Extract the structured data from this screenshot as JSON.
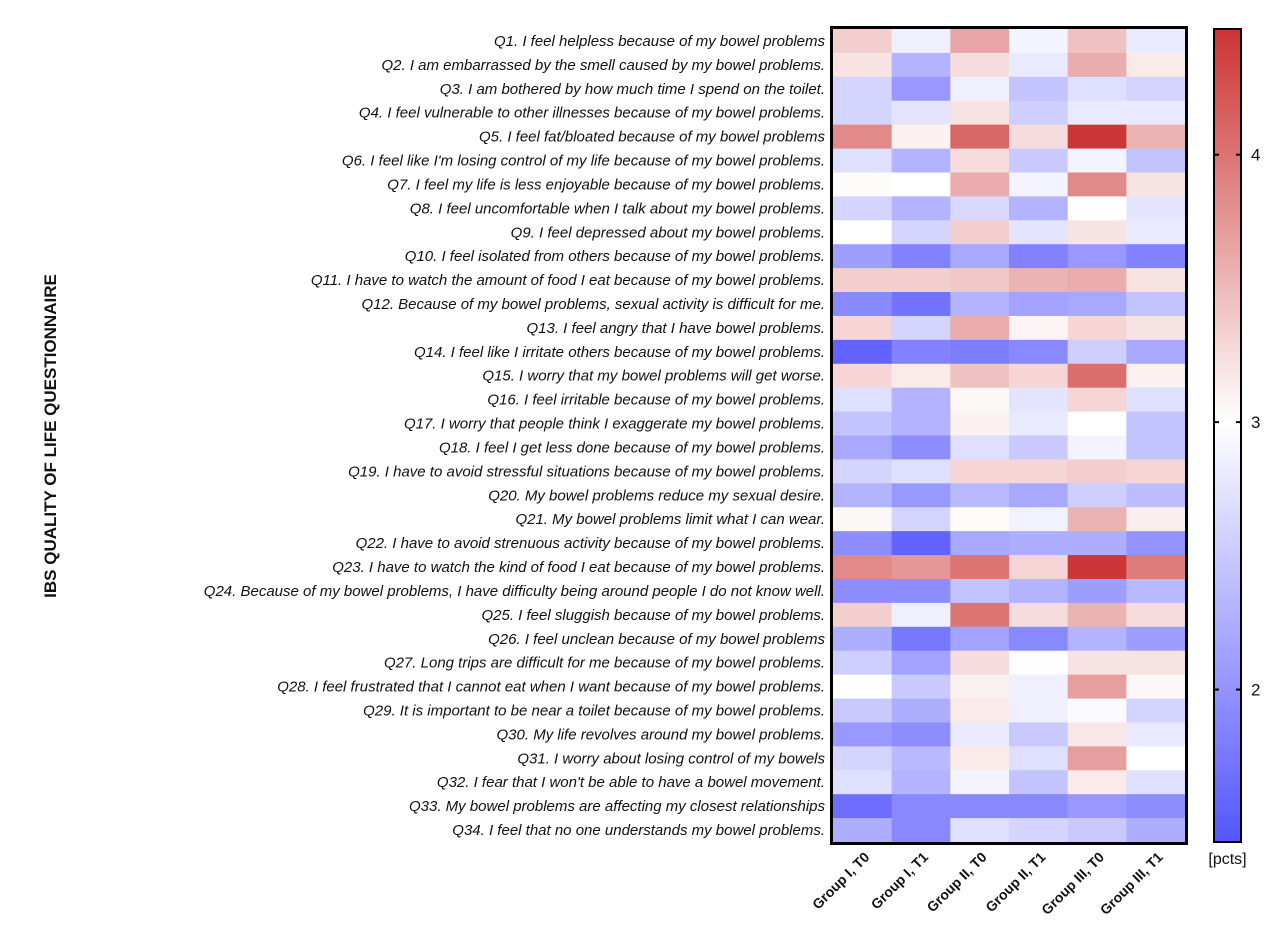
{
  "chart_data": {
    "type": "heatmap",
    "title": "",
    "ylabel": "IBS QUALITY OF LIFE QUESTIONNAIRE",
    "xlabel": "",
    "columns": [
      "Group I, T0",
      "Group I, T1",
      "Group II, T0",
      "Group II, T1",
      "Group III, T0",
      "Group III, T1"
    ],
    "rows": [
      "Q1. I feel helpless because of my bowel problems",
      "Q2. I am embarrassed by the smell caused by my bowel problems.",
      "Q3. I am bothered by how much time I spend on the toilet.",
      "Q4. I feel vulnerable to other illnesses because of my bowel problems.",
      "Q5. I feel fat/bloated because of my bowel problems",
      "Q6. I feel like I'm losing control of my life because of my bowel problems.",
      "Q7. I feel my life is less enjoyable because of my bowel problems.",
      "Q8. I feel uncomfortable when I talk about my bowel problems.",
      "Q9. I feel depressed about my bowel problems.",
      "Q10. I feel isolated from others because of my bowel problems.",
      "Q11. I have to watch the amount of food I eat because of my bowel problems.",
      "Q12. Because of my bowel problems, sexual activity is difficult for me.",
      "Q13. I feel angry that I have bowel problems.",
      "Q14. I feel like I irritate others because of my bowel problems.",
      "Q15. I worry that my bowel problems will get worse.",
      "Q16. I feel irritable because of my bowel problems.",
      "Q17. I worry that people think I exaggerate my bowel problems.",
      "Q18. I feel I get less done because of my bowel problems.",
      "Q19. I have to avoid stressful situations because of my bowel problems.",
      "Q20. My bowel problems reduce my sexual desire.",
      "Q21. My bowel problems limit what I can wear.",
      "Q22. I have to avoid strenuous activity because of my bowel problems.",
      "Q23. I have to watch the kind of food I eat because of my bowel problems.",
      "Q24. Because of my bowel problems, I have difficulty being around people I do not know well.",
      "Q25. I feel sluggish because of my bowel problems.",
      "Q26. I feel unclean because of my bowel problems",
      "Q27. Long trips are difficult for me because of my bowel problems.",
      "Q28. I feel frustrated that I cannot eat when I want because of my bowel problems.",
      "Q29. It is important to be near a toilet because of my bowel problems.",
      "Q30. My life revolves around my bowel problems.",
      "Q31. I worry about losing control of my bowels",
      "Q32. I fear that I won't be able to have a bowel movement.",
      "Q33. My bowel problems are affecting my closest relationships",
      "Q34. I feel that no one understands my bowel problems."
    ],
    "values": [
      [
        3.35,
        2.85,
        3.65,
        2.9,
        3.45,
        2.8
      ],
      [
        3.2,
        2.3,
        3.25,
        2.8,
        3.6,
        3.15
      ],
      [
        2.6,
        2.05,
        2.85,
        2.45,
        2.7,
        2.6
      ],
      [
        2.6,
        2.75,
        3.2,
        2.55,
        2.8,
        2.8
      ],
      [
        3.85,
        3.1,
        4.1,
        3.25,
        4.45,
        3.55
      ],
      [
        2.7,
        2.3,
        3.25,
        2.5,
        2.9,
        2.45
      ],
      [
        3.03,
        3.0,
        3.6,
        2.9,
        3.85,
        3.2
      ],
      [
        2.6,
        2.3,
        2.65,
        2.3,
        3.0,
        2.75
      ],
      [
        3.0,
        2.6,
        3.35,
        2.75,
        3.2,
        2.8
      ],
      [
        2.1,
        1.85,
        2.2,
        1.85,
        2.05,
        1.85
      ],
      [
        3.35,
        3.35,
        3.4,
        3.55,
        3.6,
        3.2
      ],
      [
        1.9,
        1.7,
        2.3,
        2.15,
        2.2,
        2.45
      ],
      [
        3.3,
        2.6,
        3.6,
        3.08,
        3.3,
        3.2
      ],
      [
        1.55,
        1.85,
        1.8,
        1.9,
        2.55,
        2.2
      ],
      [
        3.3,
        3.15,
        3.45,
        3.3,
        4.05,
        3.1
      ],
      [
        2.7,
        2.3,
        3.05,
        2.75,
        3.3,
        2.7
      ],
      [
        2.45,
        2.3,
        3.1,
        2.8,
        3.0,
        2.45
      ],
      [
        2.2,
        1.95,
        2.7,
        2.5,
        2.9,
        2.45
      ],
      [
        2.6,
        2.7,
        3.3,
        3.3,
        3.35,
        3.3
      ],
      [
        2.3,
        2.05,
        2.35,
        2.2,
        2.55,
        2.4
      ],
      [
        3.05,
        2.6,
        3.03,
        2.88,
        3.55,
        3.12
      ],
      [
        1.95,
        1.55,
        2.2,
        2.25,
        2.25,
        2.0
      ],
      [
        3.85,
        3.75,
        4.0,
        3.3,
        4.45,
        3.95
      ],
      [
        1.95,
        1.95,
        2.45,
        2.3,
        2.1,
        2.35
      ],
      [
        3.35,
        2.85,
        4.0,
        3.25,
        3.55,
        3.25
      ],
      [
        2.25,
        1.75,
        2.15,
        1.9,
        2.3,
        2.1
      ],
      [
        2.55,
        2.15,
        3.25,
        3.01,
        3.2,
        3.2
      ],
      [
        3.0,
        2.5,
        3.1,
        2.85,
        3.7,
        3.05
      ],
      [
        2.5,
        2.25,
        3.15,
        2.85,
        2.95,
        2.6
      ],
      [
        2.05,
        1.95,
        2.8,
        2.5,
        3.18,
        2.8
      ],
      [
        2.6,
        2.35,
        3.15,
        2.7,
        3.7,
        3.0
      ],
      [
        2.7,
        2.3,
        2.9,
        2.45,
        3.15,
        2.7
      ],
      [
        1.65,
        1.9,
        1.9,
        1.9,
        2.05,
        1.95
      ],
      [
        2.25,
        1.9,
        2.7,
        2.6,
        2.5,
        2.25
      ]
    ],
    "colorbar": {
      "label": "[pcts]",
      "range": [
        1.43,
        4.47
      ],
      "ticks": [
        2,
        3,
        4
      ],
      "colors": {
        "low": "#5555ff",
        "mid": "#ffffff",
        "high": "#cc3333"
      },
      "mid_value": 3
    },
    "grid": false,
    "legend": "right"
  }
}
